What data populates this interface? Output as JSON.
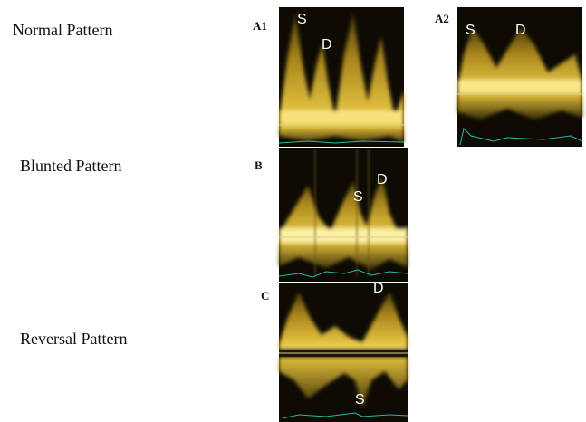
{
  "rows": [
    {
      "label": "Normal Pattern",
      "panels": [
        {
          "id": "A1",
          "marks": [
            "S",
            "D"
          ]
        },
        {
          "id": "A2",
          "marks": [
            "S",
            "D"
          ]
        }
      ]
    },
    {
      "label": "Blunted Pattern",
      "panels": [
        {
          "id": "B",
          "marks": [
            "S",
            "D"
          ]
        }
      ]
    },
    {
      "label": "Reversal Pattern",
      "panels": [
        {
          "id": "C",
          "marks": [
            "D",
            "S"
          ]
        }
      ]
    }
  ]
}
